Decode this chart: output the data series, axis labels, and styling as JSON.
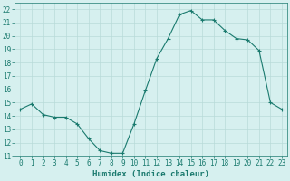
{
  "x": [
    0,
    1,
    2,
    3,
    4,
    5,
    6,
    7,
    8,
    9,
    10,
    11,
    12,
    13,
    14,
    15,
    16,
    17,
    18,
    19,
    20,
    21,
    22,
    23
  ],
  "y": [
    14.5,
    14.9,
    14.1,
    13.9,
    13.9,
    13.4,
    12.3,
    11.4,
    11.2,
    11.2,
    13.4,
    15.9,
    18.3,
    19.8,
    21.6,
    21.9,
    21.2,
    21.2,
    20.4,
    19.8,
    19.7,
    18.9,
    15.0,
    14.5
  ],
  "xlim": [
    -0.5,
    23.5
  ],
  "ylim": [
    11,
    22.5
  ],
  "yticks": [
    11,
    12,
    13,
    14,
    15,
    16,
    17,
    18,
    19,
    20,
    21,
    22
  ],
  "xticks": [
    0,
    1,
    2,
    3,
    4,
    5,
    6,
    7,
    8,
    9,
    10,
    11,
    12,
    13,
    14,
    15,
    16,
    17,
    18,
    19,
    20,
    21,
    22,
    23
  ],
  "xlabel": "Humidex (Indice chaleur)",
  "line_color": "#1a7a6e",
  "marker": "+",
  "bg_color": "#d6f0ef",
  "grid_color": "#b8dbd9",
  "xlabel_color": "#1a7a6e",
  "tick_color": "#1a7a6e",
  "axis_color": "#1a7a6e",
  "xlabel_fontsize": 6.5,
  "tick_fontsize": 5.5
}
